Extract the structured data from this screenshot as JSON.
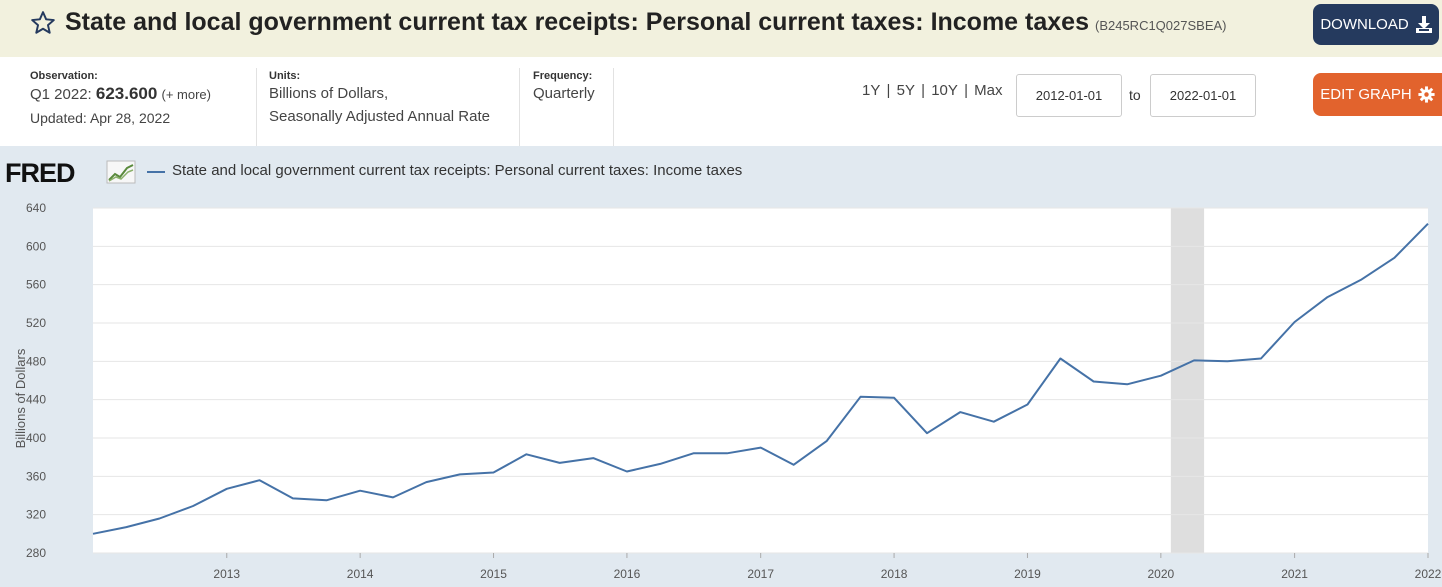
{
  "header": {
    "title": "State and local government current tax receipts: Personal current taxes: Income taxes",
    "series_id": "(B245RC1Q027SBEA)",
    "download_label": "DOWNLOAD"
  },
  "meta": {
    "observation_label": "Observation:",
    "observation_period": "Q1 2022:",
    "observation_value": "623.600",
    "observation_more": "(+ more)",
    "updated": "Updated: Apr 28, 2022",
    "units_label": "Units:",
    "units_line1": "Billions of Dollars,",
    "units_line2": "Seasonally Adjusted Annual Rate",
    "frequency_label": "Frequency:",
    "frequency_value": "Quarterly"
  },
  "controls": {
    "range_1y": "1Y",
    "range_5y": "5Y",
    "range_10y": "10Y",
    "range_max": "Max",
    "divider": "|",
    "start_date": "2012-01-01",
    "to_label": "to",
    "end_date": "2022-01-01",
    "edit_label": "EDIT GRAPH"
  },
  "chart_header": {
    "logo": "FRED",
    "legend": "State and local government current tax receipts: Personal current taxes: Income taxes"
  },
  "colors": {
    "line": "#4572a7",
    "recession": "#dedede",
    "download_bg": "#253a5e",
    "edit_bg": "#e2632d",
    "title_bg": "#f2f1de",
    "chart_bg": "#e1e9f0"
  },
  "chart_data": {
    "type": "line",
    "ylabel": "Billions of Dollars",
    "ylim": [
      280,
      640
    ],
    "yticks": [
      280,
      320,
      360,
      400,
      440,
      480,
      520,
      560,
      600,
      640
    ],
    "xtick_labels": [
      "2013",
      "2014",
      "2015",
      "2016",
      "2017",
      "2018",
      "2019",
      "2020",
      "2021",
      "2022"
    ],
    "grid": true,
    "recession": [
      "2020-01-01",
      "2020-04-01"
    ],
    "series": [
      {
        "name": "State and local government current tax receipts: Personal current taxes: Income taxes",
        "x": [
          "2012-01-01",
          "2012-04-01",
          "2012-07-01",
          "2012-10-01",
          "2013-01-01",
          "2013-04-01",
          "2013-07-01",
          "2013-10-01",
          "2014-01-01",
          "2014-04-01",
          "2014-07-01",
          "2014-10-01",
          "2015-01-01",
          "2015-04-01",
          "2015-07-01",
          "2015-10-01",
          "2016-01-01",
          "2016-04-01",
          "2016-07-01",
          "2016-10-01",
          "2017-01-01",
          "2017-04-01",
          "2017-07-01",
          "2017-10-01",
          "2018-01-01",
          "2018-04-01",
          "2018-07-01",
          "2018-10-01",
          "2019-01-01",
          "2019-04-01",
          "2019-07-01",
          "2019-10-01",
          "2020-01-01",
          "2020-04-01",
          "2020-07-01",
          "2020-10-01",
          "2021-01-01",
          "2021-04-01",
          "2021-07-01",
          "2021-10-01",
          "2022-01-01"
        ],
        "values": [
          300,
          307,
          316,
          329,
          347,
          356,
          337,
          335,
          345,
          338,
          354,
          362,
          364,
          383,
          374,
          379,
          365,
          373,
          384,
          384,
          390,
          372,
          397,
          443,
          442,
          405,
          427,
          417,
          435,
          483,
          459,
          456,
          465,
          481,
          480,
          483,
          521,
          547,
          565,
          588,
          623.6
        ]
      }
    ]
  }
}
